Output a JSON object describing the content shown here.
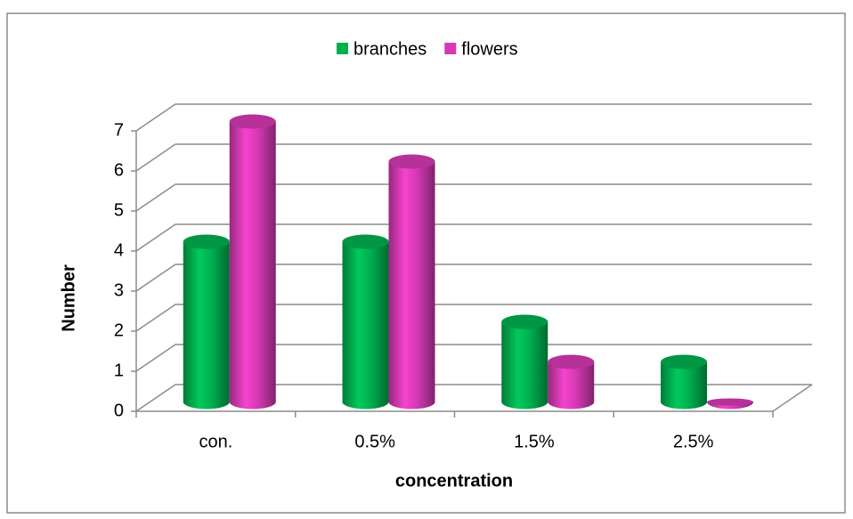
{
  "chart_data": {
    "type": "bar3d",
    "categories": [
      "con.",
      "0.5%",
      "1.5%",
      "2.5%"
    ],
    "series": [
      {
        "name": "branches",
        "color": "#00b050",
        "values": [
          4,
          4,
          2,
          1
        ]
      },
      {
        "name": "flowers",
        "color": "#d63ab4",
        "values": [
          7,
          6,
          1,
          0
        ]
      }
    ],
    "x_label": "concentration",
    "y_label": "Number",
    "ylim": [
      0,
      7
    ],
    "yticks": [
      0,
      1,
      2,
      3,
      4,
      5,
      6,
      7
    ],
    "grid": true,
    "legend": "top"
  }
}
